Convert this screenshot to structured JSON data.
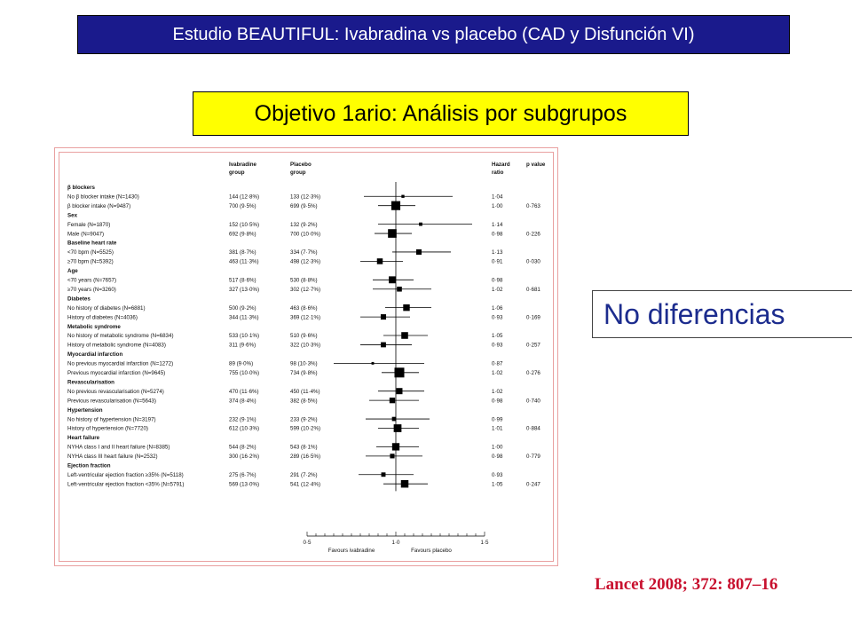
{
  "header": {
    "title": "Estudio BEAUTIFUL: Ivabradina vs placebo (CAD y Disfunción VI)"
  },
  "subheader": {
    "title": "Objetivo 1ario: Análisis por subgrupos"
  },
  "note": {
    "text": "No diferencias"
  },
  "citation": {
    "text": "Lancet 2008; 372: 807–16"
  },
  "colors": {
    "title_bg": "#1a1a8c",
    "subtitle_bg": "#ffff00",
    "note_text": "#1c2c8e",
    "citation": "#c8102e",
    "frame": "#e9a0a0"
  },
  "chart_data": {
    "type": "forest",
    "columns": {
      "iva": [
        "Ivabradine",
        "group"
      ],
      "pla": [
        "Placebo",
        "group"
      ],
      "hr": [
        "Hazard",
        "ratio"
      ],
      "p": [
        "p value",
        ""
      ]
    },
    "xaxis": {
      "min": 0.5,
      "max": 1.5,
      "ticks": [
        "0·5",
        "1·0",
        "1·5"
      ],
      "left_label": "Favours ivabradine",
      "right_label": "Favours placebo"
    },
    "rows": [
      {
        "kind": "header",
        "label": "β blockers"
      },
      {
        "kind": "item",
        "label": "No β blocker intake (N=1430)",
        "iva": "144 (12·8%)",
        "pla": "133 (12·3%)",
        "hr_text": "1·04",
        "p": "",
        "hr": 1.04,
        "lo": 0.82,
        "hi": 1.32,
        "size": 0.15
      },
      {
        "kind": "item",
        "label": "β blocker intake (N=9487)",
        "iva": "700 (9·5%)",
        "pla": "699 (9·5%)",
        "hr_text": "1·00",
        "p": "0·763",
        "hr": 1.0,
        "lo": 0.9,
        "hi": 1.11,
        "size": 0.9
      },
      {
        "kind": "header",
        "label": "Sex"
      },
      {
        "kind": "item",
        "label": "Female (N=1870)",
        "iva": "152 (10·5%)",
        "pla": "132 (9·2%)",
        "hr_text": "1·14",
        "p": "",
        "hr": 1.14,
        "lo": 0.9,
        "hi": 1.43,
        "size": 0.2
      },
      {
        "kind": "item",
        "label": "Male (N=9047)",
        "iva": "692 (9·8%)",
        "pla": "700 (10·0%)",
        "hr_text": "0·98",
        "p": "0·226",
        "hr": 0.98,
        "lo": 0.88,
        "hi": 1.09,
        "size": 0.85
      },
      {
        "kind": "header",
        "label": "Baseline heart rate"
      },
      {
        "kind": "item",
        "label": "<70 bpm (N=5525)",
        "iva": "381 (8·7%)",
        "pla": "334 (7·7%)",
        "hr_text": "1·13",
        "p": "",
        "hr": 1.13,
        "lo": 0.98,
        "hi": 1.31,
        "size": 0.45
      },
      {
        "kind": "item",
        "label": "≥70 bpm (N=5392)",
        "iva": "463 (11·3%)",
        "pla": "498 (12·3%)",
        "hr_text": "0·91",
        "p": "0·030",
        "hr": 0.91,
        "lo": 0.8,
        "hi": 1.04,
        "size": 0.5
      },
      {
        "kind": "header",
        "label": "Age"
      },
      {
        "kind": "item",
        "label": "<70 years (N=7657)",
        "iva": "517 (8·6%)",
        "pla": "530 (8·8%)",
        "hr_text": "0·98",
        "p": "",
        "hr": 0.98,
        "lo": 0.87,
        "hi": 1.1,
        "size": 0.65
      },
      {
        "kind": "item",
        "label": "≥70 years (N=3260)",
        "iva": "327 (13·0%)",
        "pla": "302 (12·7%)",
        "hr_text": "1·02",
        "p": "0·681",
        "hr": 1.02,
        "lo": 0.87,
        "hi": 1.2,
        "size": 0.4
      },
      {
        "kind": "header",
        "label": "Diabetes"
      },
      {
        "kind": "item",
        "label": "No history of diabetes (N=6881)",
        "iva": "500 (9·2%)",
        "pla": "463 (8·6%)",
        "hr_text": "1·06",
        "p": "",
        "hr": 1.06,
        "lo": 0.94,
        "hi": 1.2,
        "size": 0.6
      },
      {
        "kind": "item",
        "label": "History of diabetes (N=4036)",
        "iva": "344 (11·3%)",
        "pla": "369 (12·1%)",
        "hr_text": "0·93",
        "p": "0·169",
        "hr": 0.93,
        "lo": 0.8,
        "hi": 1.08,
        "size": 0.45
      },
      {
        "kind": "header",
        "label": "Metabolic syndrome"
      },
      {
        "kind": "item",
        "label": "No history of metabolic syndrome (N=6834)",
        "iva": "533 (10·1%)",
        "pla": "510 (9·6%)",
        "hr_text": "1·05",
        "p": "",
        "hr": 1.05,
        "lo": 0.93,
        "hi": 1.18,
        "size": 0.62
      },
      {
        "kind": "item",
        "label": "History of metabolic syndrome (N=4083)",
        "iva": "311 (9·6%)",
        "pla": "322 (10·3%)",
        "hr_text": "0·93",
        "p": "0·257",
        "hr": 0.93,
        "lo": 0.8,
        "hi": 1.09,
        "size": 0.42
      },
      {
        "kind": "header",
        "label": "Myocardial infarction"
      },
      {
        "kind": "item",
        "label": "No previous myocardial infarction (N=1272)",
        "iva": "89 (9·0%)",
        "pla": "98 (10·3%)",
        "hr_text": "0·87",
        "p": "",
        "hr": 0.87,
        "lo": 0.65,
        "hi": 1.16,
        "size": 0.1
      },
      {
        "kind": "item",
        "label": "Previous myocardial infarction (N=9645)",
        "iva": "755 (10·0%)",
        "pla": "734 (9·8%)",
        "hr_text": "1·02",
        "p": "0·276",
        "hr": 1.02,
        "lo": 0.92,
        "hi": 1.13,
        "size": 1.0
      },
      {
        "kind": "header",
        "label": "Revascularisation"
      },
      {
        "kind": "item",
        "label": "No previous revascularisation (N=5274)",
        "iva": "470 (11·6%)",
        "pla": "450 (11·4%)",
        "hr_text": "1·02",
        "p": "",
        "hr": 1.02,
        "lo": 0.9,
        "hi": 1.16,
        "size": 0.55
      },
      {
        "kind": "item",
        "label": "Previous revascularisation (N=5643)",
        "iva": "374 (8·4%)",
        "pla": "382 (8·5%)",
        "hr_text": "0·98",
        "p": "0·740",
        "hr": 0.98,
        "lo": 0.85,
        "hi": 1.13,
        "size": 0.48
      },
      {
        "kind": "header",
        "label": "Hypertension"
      },
      {
        "kind": "item",
        "label": "No history of hypertension (N=3197)",
        "iva": "232 (9·1%)",
        "pla": "233 (9·2%)",
        "hr_text": "0·99",
        "p": "",
        "hr": 0.99,
        "lo": 0.83,
        "hi": 1.19,
        "size": 0.3
      },
      {
        "kind": "item",
        "label": "History of hypertension (N=7720)",
        "iva": "612 (10·3%)",
        "pla": "599 (10·2%)",
        "hr_text": "1·01",
        "p": "0·884",
        "hr": 1.01,
        "lo": 0.9,
        "hi": 1.13,
        "size": 0.75
      },
      {
        "kind": "header",
        "label": "Heart failure"
      },
      {
        "kind": "item",
        "label": "NYHA class I and II heart failure (N=8385)",
        "iva": "544 (8·2%)",
        "pla": "543 (8·1%)",
        "hr_text": "1·00",
        "p": "",
        "hr": 1.0,
        "lo": 0.89,
        "hi": 1.13,
        "size": 0.7
      },
      {
        "kind": "item",
        "label": "NYHA class III heart failure (N=2532)",
        "iva": "300 (16·2%)",
        "pla": "289 (16·5%)",
        "hr_text": "0·98",
        "p": "0·779",
        "hr": 0.98,
        "lo": 0.83,
        "hi": 1.15,
        "size": 0.35
      },
      {
        "kind": "header",
        "label": "Ejection fraction"
      },
      {
        "kind": "item",
        "label": "Left-ventricular ejection fraction ≥35% (N=5118)",
        "iva": "275 (6·7%)",
        "pla": "291 (7·2%)",
        "hr_text": "0·93",
        "p": "",
        "hr": 0.93,
        "lo": 0.79,
        "hi": 1.1,
        "size": 0.32
      },
      {
        "kind": "item",
        "label": "Left-ventricular ejection fraction <35% (N=5791)",
        "iva": "569 (13·0%)",
        "pla": "541 (12·4%)",
        "hr_text": "1·05",
        "p": "0·247",
        "hr": 1.05,
        "lo": 0.93,
        "hi": 1.18,
        "size": 0.72
      }
    ]
  }
}
